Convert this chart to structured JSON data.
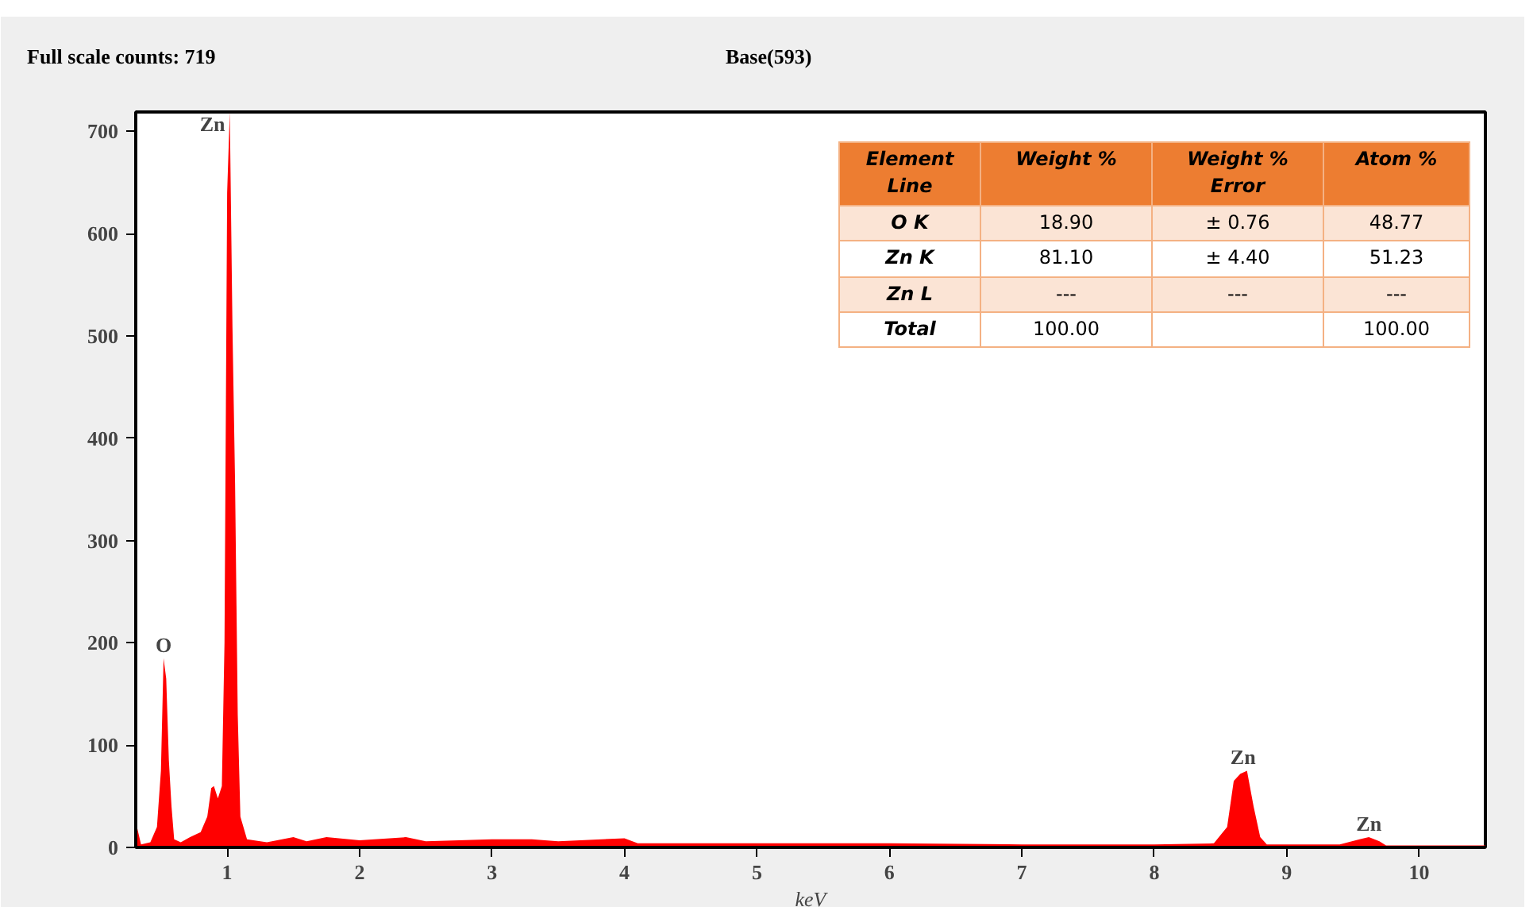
{
  "chart_data": [
    {
      "type": "area",
      "title": "Full scale counts: 719",
      "xlabel": "keV",
      "color": "#ff0000",
      "grid": false,
      "xlim": [
        0.31,
        10.5
      ],
      "ylim": [
        0,
        719
      ],
      "xticks": [
        1,
        2,
        3,
        4,
        5,
        6,
        7,
        8,
        9,
        10
      ],
      "yticks": [
        0,
        100,
        200,
        300,
        400,
        500,
        600,
        700
      ],
      "x": [
        0.31,
        0.35,
        0.42,
        0.47,
        0.5,
        0.52,
        0.54,
        0.56,
        0.58,
        0.6,
        0.65,
        0.72,
        0.8,
        0.85,
        0.88,
        0.9,
        0.93,
        0.96,
        0.98,
        1.0,
        1.02,
        1.04,
        1.06,
        1.08,
        1.1,
        1.15,
        1.3,
        1.5,
        1.6,
        1.75,
        2.0,
        2.35,
        2.5,
        3.0,
        3.3,
        3.5,
        4.0,
        4.1,
        5.0,
        6.0,
        7.0,
        8.0,
        8.45,
        8.55,
        8.6,
        8.65,
        8.7,
        8.75,
        8.8,
        8.85,
        9.4,
        9.55,
        9.62,
        9.7,
        9.75,
        10.5
      ],
      "values": [
        25,
        3,
        5,
        20,
        75,
        185,
        165,
        85,
        40,
        8,
        5,
        10,
        15,
        30,
        58,
        60,
        48,
        60,
        200,
        640,
        719,
        510,
        355,
        130,
        30,
        8,
        5,
        10,
        6,
        10,
        7,
        10,
        6,
        8,
        8,
        6,
        9,
        4,
        4,
        4,
        3,
        3,
        4,
        20,
        65,
        72,
        75,
        40,
        10,
        3,
        3,
        8,
        10,
        6,
        2,
        2
      ],
      "annotations": [
        "Base(593)",
        {
          "text": "Zn",
          "x": 1.02,
          "y": 719
        },
        {
          "text": "O",
          "x": 0.52,
          "y": 185
        },
        {
          "text": "Zn",
          "x": 8.67,
          "y": 75
        },
        {
          "text": "Zn",
          "x": 9.62,
          "y": 10
        }
      ]
    },
    {
      "type": "other",
      "colors": [
        "#ed7d31",
        "#fbe4d5",
        "#ffffff"
      ],
      "annotations": [
        "Element\nLine",
        "Weight %",
        "Weight %\nError",
        "Atom %",
        "O K",
        "18.90",
        "± 0.76",
        "48.77",
        "Zn K",
        "81.10",
        "± 4.40",
        "51.23",
        "Zn L",
        "---",
        "---",
        "---",
        "Total",
        "100.00",
        null,
        "100.00"
      ]
    }
  ]
}
